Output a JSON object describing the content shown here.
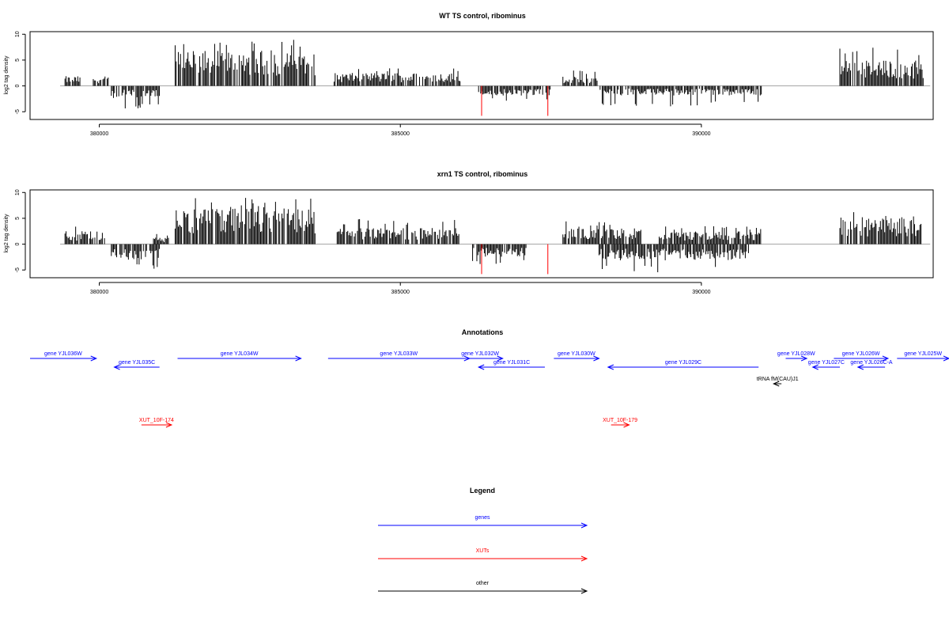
{
  "panels": [
    {
      "id": "wt",
      "title": "WT TS control, ribominus",
      "ylabel": "log2 tag density",
      "ylim": [
        -6.5,
        10.5
      ],
      "yticks": [
        -5,
        0,
        5,
        10
      ],
      "xticks": [
        380000,
        385000,
        390000
      ]
    },
    {
      "id": "xrn1",
      "title": "xrn1 TS control, ribominus",
      "ylabel": "log2 tag density",
      "ylim": [
        -6.5,
        10.5
      ],
      "yticks": [
        -5,
        0,
        5,
        10
      ],
      "xticks": [
        380000,
        385000,
        390000
      ]
    }
  ],
  "xlim": [
    378850,
    393850
  ],
  "chart_data": [
    {
      "type": "bar",
      "title": "WT TS control, ribominus",
      "ylabel": "log2 tag density",
      "xlabel": "",
      "ylim": [
        -6.5,
        10.5
      ],
      "xlim": [
        378850,
        393850
      ],
      "plus_strand_blocks": [
        {
          "x": [
            379430,
            379700
          ],
          "typical": 1.5,
          "max": 2.0
        },
        {
          "x": [
            379900,
            380150
          ],
          "typical": 1.5,
          "max": 2.5
        },
        {
          "x": [
            381260,
            383600
          ],
          "typical": 5.5,
          "max": 9.0
        },
        {
          "x": [
            383900,
            386000
          ],
          "typical": 2.0,
          "max": 3.5
        },
        {
          "x": [
            387700,
            388300
          ],
          "typical": 1.5,
          "max": 3.0
        },
        {
          "x": [
            392300,
            393700
          ],
          "typical": 4.0,
          "max": 7.5
        }
      ],
      "minus_strand_blocks": [
        {
          "x": [
            380200,
            381000
          ],
          "typical": -2.0,
          "max": -4.5
        },
        {
          "x": [
            386300,
            387500
          ],
          "typical": -1.5,
          "max": -3.0
        },
        {
          "x": [
            388300,
            391000
          ],
          "typical": -1.5,
          "max": -4.0
        }
      ],
      "red_spikes": [
        {
          "x": 386350,
          "y": -5.8
        },
        {
          "x": 387450,
          "y": -5.8
        }
      ]
    },
    {
      "type": "bar",
      "title": "xrn1 TS control, ribominus",
      "ylabel": "log2 tag density",
      "xlabel": "",
      "ylim": [
        -6.5,
        10.5
      ],
      "xlim": [
        378850,
        393850
      ],
      "plus_strand_blocks": [
        {
          "x": [
            379430,
            380100
          ],
          "typical": 2.0,
          "max": 4.0
        },
        {
          "x": [
            380900,
            381150
          ],
          "typical": 1.0,
          "max": 2.0
        },
        {
          "x": [
            381260,
            383600
          ],
          "typical": 5.5,
          "max": 9.0
        },
        {
          "x": [
            383950,
            386000
          ],
          "typical": 2.5,
          "max": 5.0
        },
        {
          "x": [
            387700,
            389000
          ],
          "typical": 2.5,
          "max": 4.5
        },
        {
          "x": [
            389300,
            391000
          ],
          "typical": 2.0,
          "max": 3.5
        },
        {
          "x": [
            392300,
            393700
          ],
          "typical": 4.0,
          "max": 6.5
        }
      ],
      "minus_strand_blocks": [
        {
          "x": [
            380200,
            381000
          ],
          "typical": -2.5,
          "max": -5.0
        },
        {
          "x": [
            386200,
            387100
          ],
          "typical": -2.0,
          "max": -4.0
        },
        {
          "x": [
            388300,
            390800
          ],
          "typical": -2.5,
          "max": -5.5
        }
      ],
      "red_spikes": [
        {
          "x": 386350,
          "y": -5.8
        },
        {
          "x": 387450,
          "y": -5.8
        }
      ]
    }
  ],
  "annotations": {
    "title": "Annotations",
    "features": [
      {
        "label": "gene YJL036W",
        "start": 378850,
        "end": 379950,
        "strand": "+",
        "kind": "gene",
        "row": 0
      },
      {
        "label": "gene YJL035C",
        "start": 380250,
        "end": 381000,
        "strand": "-",
        "kind": "gene",
        "row": 1
      },
      {
        "label": "gene YJL034W",
        "start": 381300,
        "end": 383350,
        "strand": "+",
        "kind": "gene",
        "row": 0
      },
      {
        "label": "gene YJL033W",
        "start": 383800,
        "end": 386150,
        "strand": "+",
        "kind": "gene",
        "row": 0
      },
      {
        "label": "gene YJL032W",
        "start": 385950,
        "end": 386700,
        "strand": "+",
        "kind": "gene",
        "row": 0
      },
      {
        "label": "gene YJL031C",
        "start": 386300,
        "end": 387400,
        "strand": "-",
        "kind": "gene",
        "row": 1
      },
      {
        "label": "gene YJL030W",
        "start": 387550,
        "end": 388300,
        "strand": "+",
        "kind": "gene",
        "row": 0
      },
      {
        "label": "gene YJL029C",
        "start": 388450,
        "end": 390950,
        "strand": "-",
        "kind": "gene",
        "row": 1
      },
      {
        "label": "gene YJL028W",
        "start": 391400,
        "end": 391750,
        "strand": "+",
        "kind": "gene",
        "row": 0
      },
      {
        "label": "gene YJL027C",
        "start": 391850,
        "end": 392300,
        "strand": "-",
        "kind": "gene",
        "row": 1
      },
      {
        "label": "gene YJL026W",
        "start": 392200,
        "end": 393100,
        "strand": "+",
        "kind": "gene",
        "row": 0
      },
      {
        "label": "gene YJL026C-A",
        "start": 392600,
        "end": 393050,
        "strand": "-",
        "kind": "gene",
        "row": 1
      },
      {
        "label": "gene YJL025W",
        "start": 393250,
        "end": 394450,
        "strand": "+",
        "kind": "gene",
        "row": 0
      },
      {
        "label": "tRNA fM(CAU)J1",
        "start": 391200,
        "end": 391330,
        "strand": "-",
        "kind": "other",
        "row": 2
      },
      {
        "label": "XUT_10F-174",
        "start": 380700,
        "end": 381200,
        "strand": "+",
        "kind": "xut",
        "row": 3
      },
      {
        "label": "XUT_10F-179",
        "start": 388500,
        "end": 388800,
        "strand": "+",
        "kind": "xut",
        "row": 3
      }
    ]
  },
  "legend": {
    "title": "Legend",
    "items": [
      {
        "label": "genes",
        "color": "#0000ff"
      },
      {
        "label": "XUTs",
        "color": "#ff0000"
      },
      {
        "label": "other",
        "color": "#000000"
      }
    ]
  },
  "colors": {
    "gene": "#0000ff",
    "xut": "#ff0000",
    "other": "#000000",
    "bars": "#000000",
    "spike": "#ff0000",
    "zero_line": "#999999"
  }
}
